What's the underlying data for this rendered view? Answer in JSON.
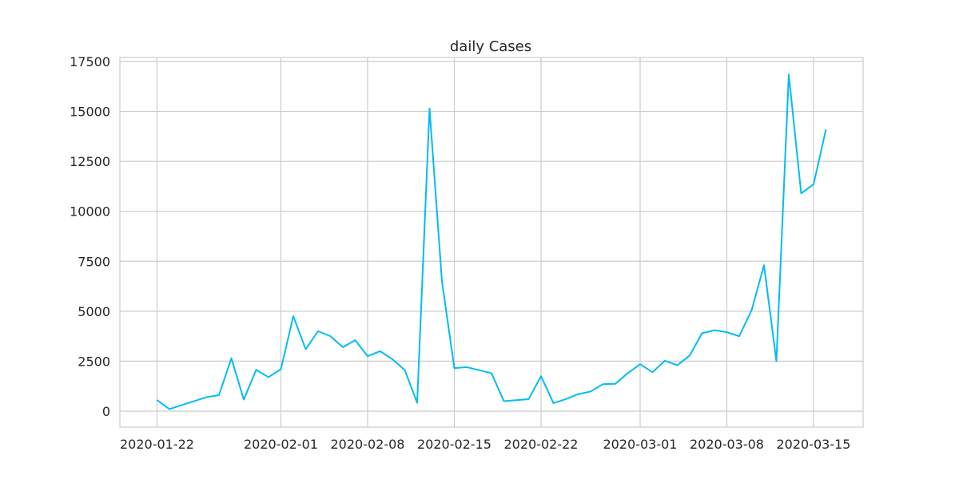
{
  "chart_data": {
    "type": "line",
    "title": "daily Cases",
    "xlabel": "",
    "ylabel": "",
    "grid": true,
    "legend": "none",
    "series_color": "#00bcf2",
    "xlim": [
      "2020-01-19",
      "2020-03-19"
    ],
    "ylim": [
      -800,
      17700
    ],
    "x_ticks": [
      "2020-01-22",
      "2020-02-01",
      "2020-02-08",
      "2020-02-15",
      "2020-02-22",
      "2020-03-01",
      "2020-03-08",
      "2020-03-15"
    ],
    "y_ticks": [
      0,
      2500,
      5000,
      7500,
      10000,
      12500,
      15000,
      17500
    ],
    "series": [
      {
        "x": [
          "2020-01-22",
          "2020-01-23",
          "2020-01-24",
          "2020-01-25",
          "2020-01-26",
          "2020-01-27",
          "2020-01-28",
          "2020-01-29",
          "2020-01-30",
          "2020-01-31",
          "2020-02-01",
          "2020-02-02",
          "2020-02-03",
          "2020-02-04",
          "2020-02-05",
          "2020-02-06",
          "2020-02-07",
          "2020-02-08",
          "2020-02-09",
          "2020-02-10",
          "2020-02-11",
          "2020-02-12",
          "2020-02-13",
          "2020-02-14",
          "2020-02-15",
          "2020-02-16",
          "2020-02-17",
          "2020-02-18",
          "2020-02-19",
          "2020-02-20",
          "2020-02-21",
          "2020-02-22",
          "2020-02-23",
          "2020-02-24",
          "2020-02-25",
          "2020-02-26",
          "2020-02-27",
          "2020-02-28",
          "2020-02-29",
          "2020-03-01",
          "2020-03-02",
          "2020-03-03",
          "2020-03-04",
          "2020-03-05",
          "2020-03-06",
          "2020-03-07",
          "2020-03-08",
          "2020-03-09",
          "2020-03-10",
          "2020-03-11",
          "2020-03-12",
          "2020-03-13",
          "2020-03-14",
          "2020-03-15",
          "2020-03-16"
        ],
        "values": [
          555,
          100,
          300,
          500,
          700,
          800,
          2650,
          580,
          2060,
          1700,
          2100,
          4750,
          3100,
          4000,
          3750,
          3200,
          3550,
          2750,
          3000,
          2600,
          2050,
          420,
          15150,
          6500,
          2150,
          2200,
          2050,
          1900,
          500,
          550,
          600,
          1750,
          400,
          600,
          850,
          980,
          1350,
          1370,
          1900,
          2350,
          1950,
          2520,
          2300,
          2780,
          3900,
          4050,
          3950,
          3750,
          5050,
          7300,
          2500,
          16850,
          10900,
          11350,
          14100
        ]
      }
    ]
  }
}
